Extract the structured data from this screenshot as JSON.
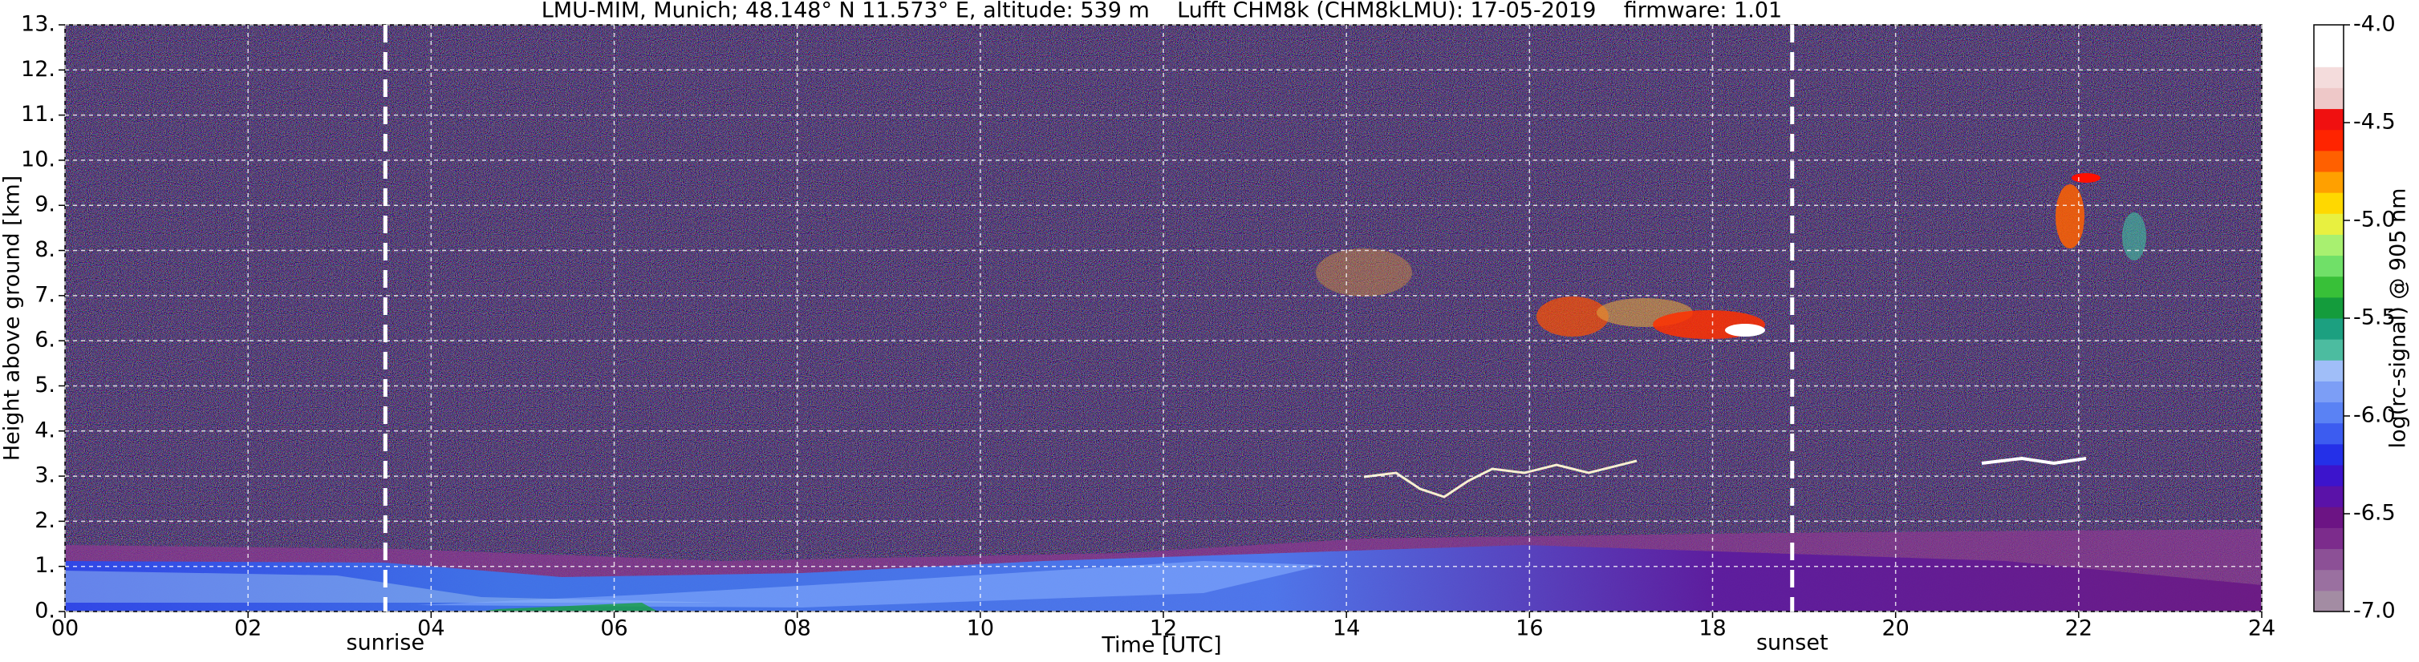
{
  "chart_data": {
    "type": "heatmap",
    "title": "LMU-MIM, Munich; 48.148° N 11.573° E, altitude: 539 m    Lufft CHM8k (CHM8kLMU): 17-05-2019    firmware: 1.01",
    "x_label": "Time [UTC]",
    "y_label": "Height above ground [km]",
    "xlim": [
      0,
      24
    ],
    "xticks": [
      {
        "value": 0,
        "label": "00"
      },
      {
        "value": 2,
        "label": "02"
      },
      {
        "value": 4,
        "label": "04"
      },
      {
        "value": 6,
        "label": "06"
      },
      {
        "value": 8,
        "label": "08"
      },
      10,
      12,
      14,
      16,
      18,
      20,
      22,
      24
    ],
    "ylim": [
      0,
      13
    ],
    "yticks": [
      {
        "value": 0,
        "label": "0."
      },
      {
        "value": 1,
        "label": "1."
      },
      {
        "value": 2,
        "label": "2."
      },
      {
        "value": 3,
        "label": "3."
      },
      {
        "value": 4,
        "label": "4."
      },
      {
        "value": 5,
        "label": "5."
      },
      {
        "value": 6,
        "label": "6."
      },
      {
        "value": 7,
        "label": "7."
      },
      {
        "value": 8,
        "label": "8."
      },
      {
        "value": 9,
        "label": "9."
      },
      {
        "value": 10,
        "label": "10."
      },
      {
        "value": 11,
        "label": "11."
      },
      {
        "value": 12,
        "label": "12."
      },
      {
        "value": 13,
        "label": "13."
      }
    ],
    "grid": true,
    "annotations": [
      {
        "x": 3.5,
        "label": "sunrise"
      },
      {
        "x": 18.87,
        "label": "sunset"
      }
    ],
    "colorbar": {
      "label": "log(rc-signal) @ 905 nm",
      "lim": [
        -7,
        -4
      ],
      "ticks": [
        {
          "value": -7,
          "label": "-7.0"
        },
        -6.5,
        {
          "value": -6,
          "label": "-6.0"
        },
        -5.5,
        {
          "value": -5,
          "label": "-5.0"
        },
        -4.5,
        {
          "value": -4,
          "label": "-4.0"
        }
      ],
      "colors": [
        "#a38ca3",
        "#9a70a0",
        "#8c5096",
        "#7c2c8c",
        "#6c1484",
        "#5a12a8",
        "#3c14cc",
        "#2430e8",
        "#3c5cf0",
        "#5a82f4",
        "#7c9ef6",
        "#a0bef8",
        "#4cbca0",
        "#1ca080",
        "#149c3c",
        "#38c038",
        "#70e068",
        "#a8f070",
        "#e8f040",
        "#ffd800",
        "#ffa000",
        "#ff6000",
        "#ff2400",
        "#f01010",
        "#eec8c8",
        "#f4dcdc",
        "#ffffff",
        "#ffffff"
      ]
    }
  }
}
